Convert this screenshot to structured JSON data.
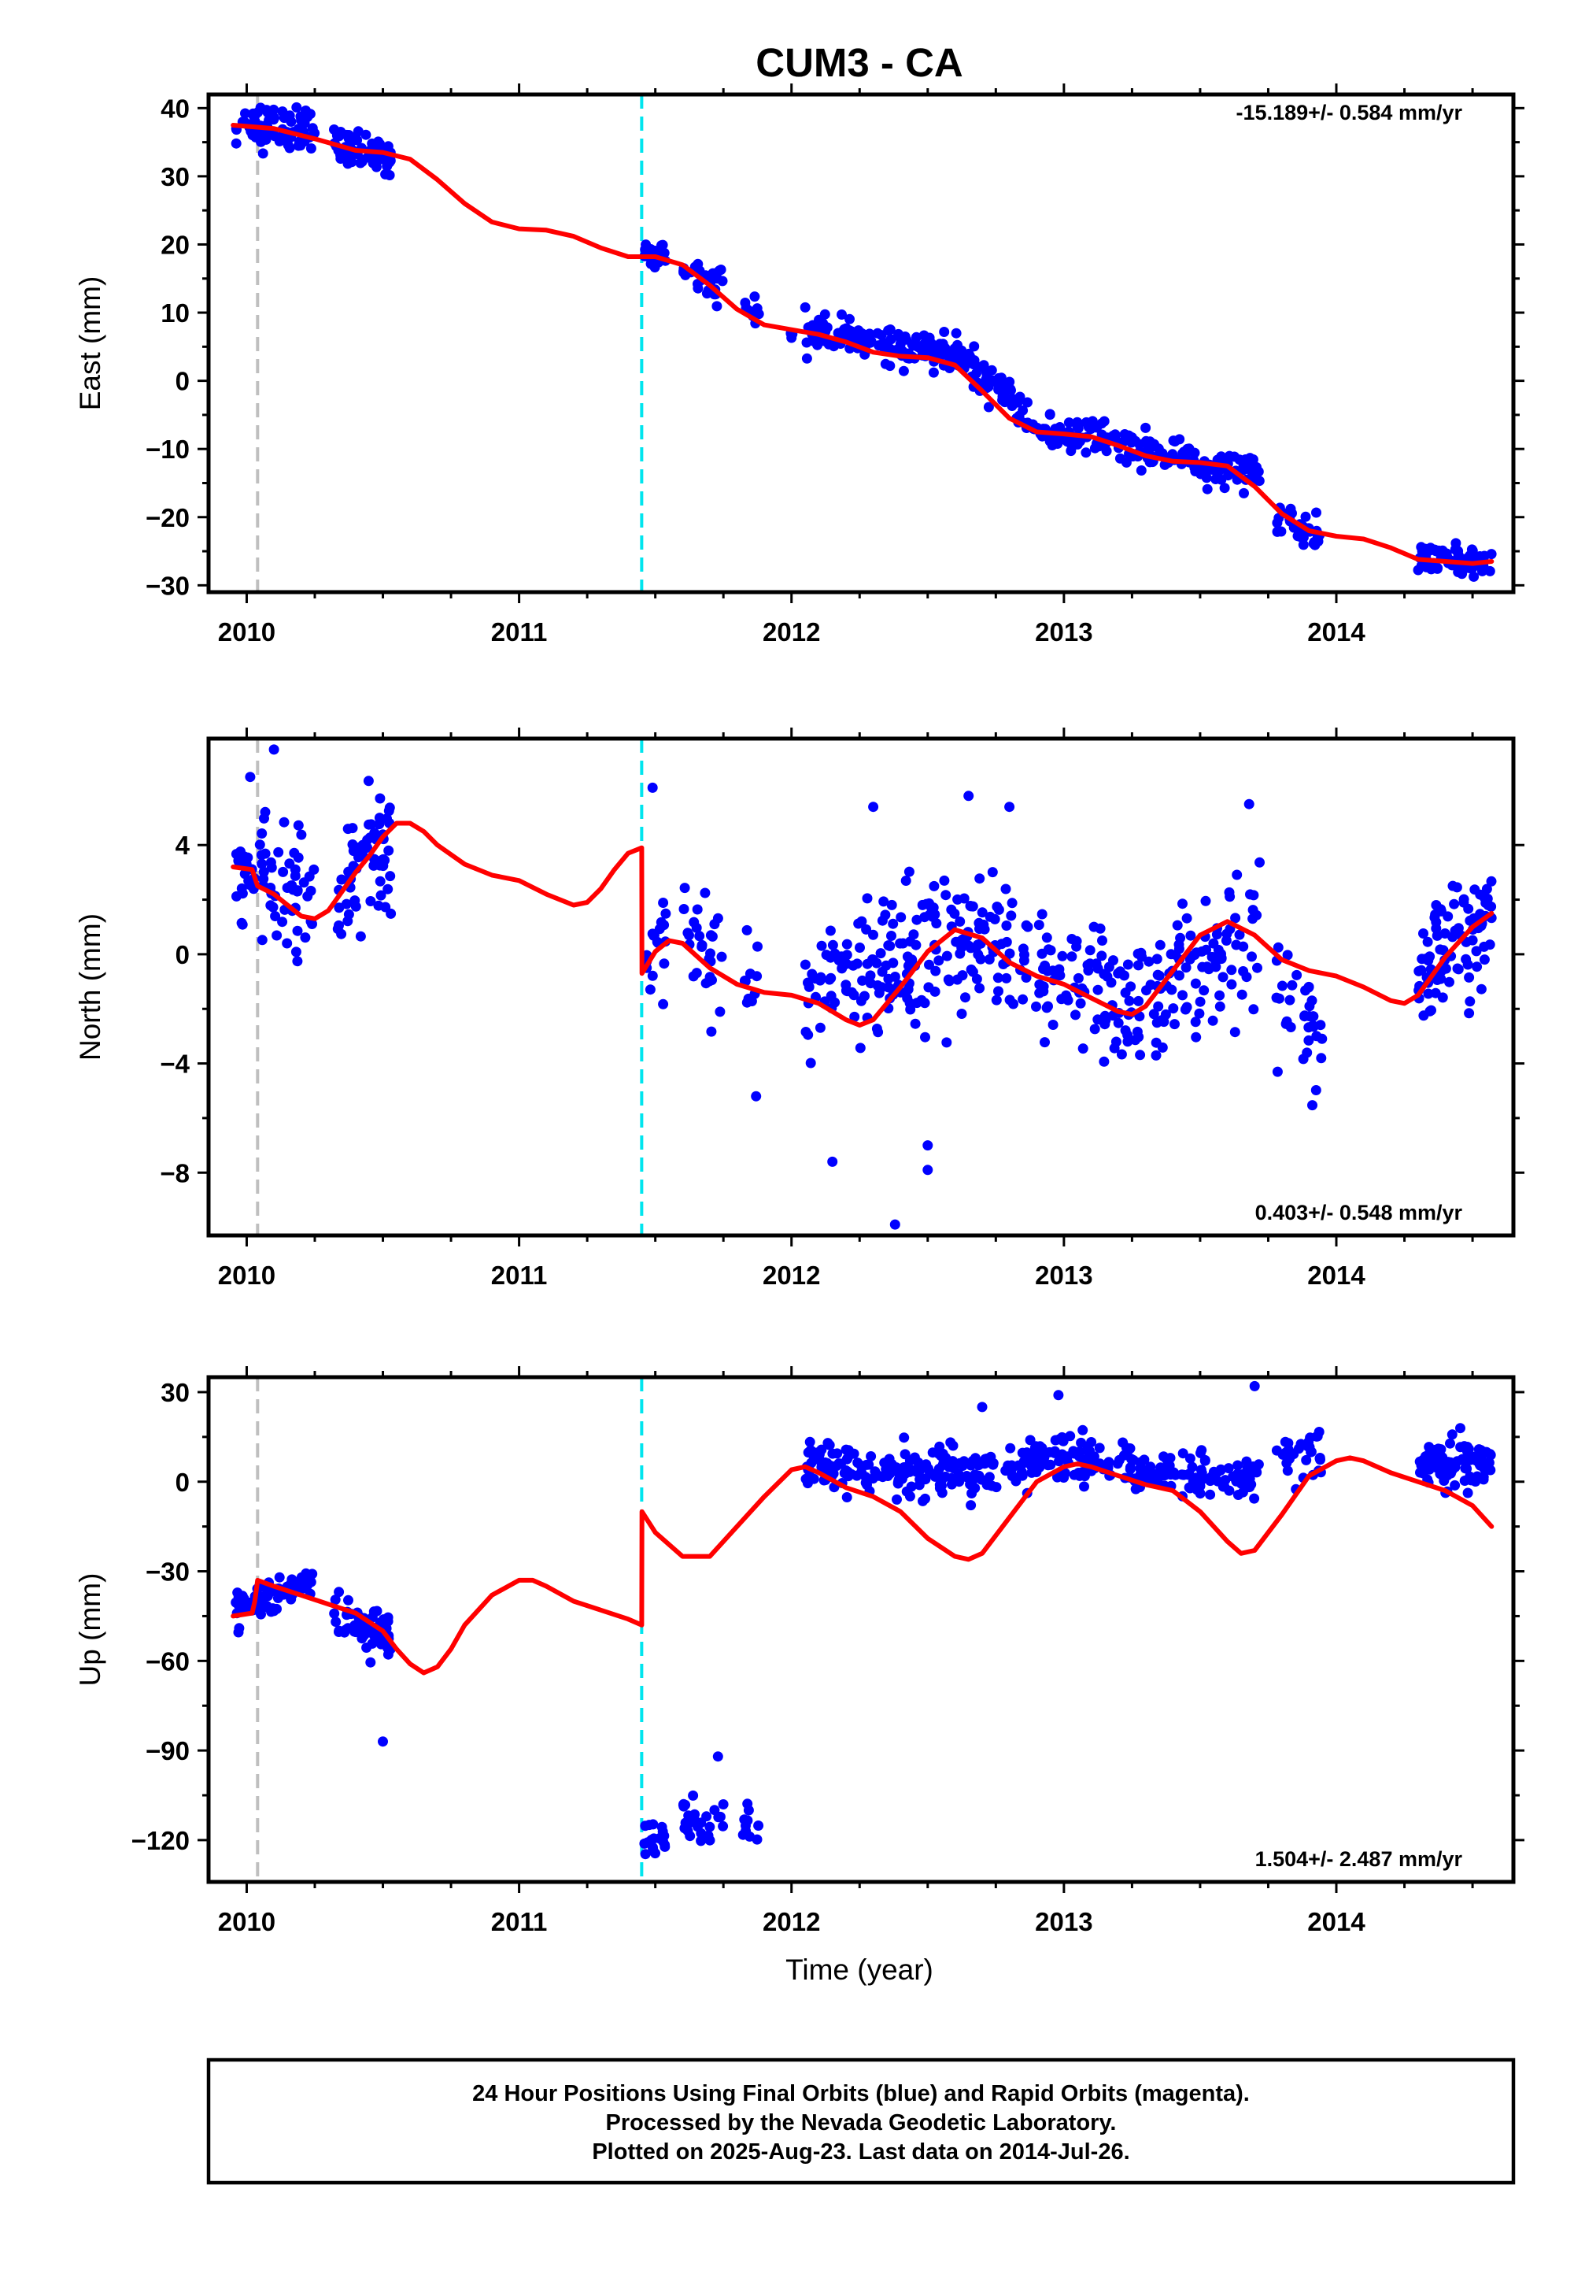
{
  "chart_data": {
    "type": "scatter",
    "title": "CUM3 - CA",
    "xlabel": "Time (year)",
    "x_ticks": [
      "2010",
      "2011",
      "2012",
      "2013",
      "2014"
    ],
    "xlim": [
      2009.86,
      2014.65
    ],
    "grid": false,
    "legend": "none",
    "colors": {
      "observations": "#0000ff",
      "model": "#ff0000",
      "antenna_change": "#00e5ee",
      "other_event": "#bfbfbf"
    },
    "events": [
      {
        "x": 2010.04,
        "color": "gray",
        "style": "dashed"
      },
      {
        "x": 2011.45,
        "color": "cyan",
        "style": "dashed"
      }
    ],
    "panels": [
      {
        "name": "East",
        "ylabel": "East (mm)",
        "ylim": [
          -31,
          42
        ],
        "y_ticks": [
          40,
          30,
          20,
          10,
          0,
          -10,
          -20,
          -30
        ],
        "y_tick_labels": [
          "40",
          "30",
          "20",
          "10",
          "0",
          "−10",
          "−20",
          "−30"
        ],
        "rate_text": "-15.189+/- 0.584 mm/yr",
        "rate_position": "top-right",
        "model_curve": {
          "x": [
            2009.95,
            2010.1,
            2010.25,
            2010.4,
            2010.5,
            2010.6,
            2010.7,
            2010.8,
            2010.9,
            2011.0,
            2011.1,
            2011.2,
            2011.3,
            2011.4,
            2011.5,
            2011.6,
            2011.7,
            2011.8,
            2011.9,
            2012.0,
            2012.1,
            2012.2,
            2012.3,
            2012.4,
            2012.5,
            2012.6,
            2012.7,
            2012.8,
            2012.9,
            2013.0,
            2013.1,
            2013.2,
            2013.3,
            2013.4,
            2013.5,
            2013.6,
            2013.7,
            2013.8,
            2013.9,
            2014.0,
            2014.1,
            2014.2,
            2014.3,
            2014.4,
            2014.5,
            2014.57
          ],
          "y": [
            37.5,
            37,
            35.5,
            33.8,
            33.5,
            32.5,
            29.5,
            26,
            23.3,
            22.3,
            22.1,
            21.2,
            19.5,
            18.2,
            18.2,
            17,
            14,
            10.5,
            8.2,
            7.5,
            6.8,
            5.7,
            4.2,
            3.6,
            3.4,
            2.3,
            -1.5,
            -5.5,
            -7.5,
            -7.8,
            -8.2,
            -9.5,
            -11,
            -11.8,
            -12,
            -12.5,
            -15.5,
            -19.5,
            -22,
            -22.8,
            -23.2,
            -24.5,
            -26.2,
            -26.5,
            -26.8,
            -26.5
          ]
        },
        "observations": [
          {
            "x0": 2009.96,
            "x1": 2010.25,
            "center": [
              37.5,
              37
            ],
            "spread": 2.2,
            "n": 72
          },
          {
            "x0": 2010.32,
            "x1": 2010.53,
            "center": [
              34,
              33.2
            ],
            "spread": 1.8,
            "n": 62
          },
          {
            "x0": 2011.46,
            "x1": 2011.54,
            "center": [
              18.5,
              18.5
            ],
            "spread": 1.3,
            "n": 18
          },
          {
            "x0": 2011.6,
            "x1": 2011.75,
            "center": [
              17,
              13.5
            ],
            "spread": 1.8,
            "n": 28
          },
          {
            "x0": 2011.82,
            "x1": 2011.88,
            "center": [
              11,
              10
            ],
            "spread": 1.3,
            "n": 10
          },
          {
            "x0": 2011.99,
            "x1": 2012.02,
            "center": [
              7,
              7
            ],
            "spread": 1,
            "n": 3
          },
          {
            "x0": 2012.05,
            "x1": 2012.65,
            "center": [
              7.5,
              3.2
            ],
            "spread": 1.6,
            "n": 150
          },
          {
            "x0": 2012.65,
            "x1": 2012.88,
            "center": [
              2.5,
              -6
            ],
            "spread": 2,
            "n": 55
          },
          {
            "x0": 2012.88,
            "x1": 2013.25,
            "center": [
              -7.5,
              -9
            ],
            "spread": 1.6,
            "n": 85
          },
          {
            "x0": 2013.25,
            "x1": 2013.72,
            "center": [
              -10.5,
              -13.5
            ],
            "spread": 1.7,
            "n": 105
          },
          {
            "x0": 2013.78,
            "x1": 2013.95,
            "center": [
              -20,
              -23
            ],
            "spread": 1.8,
            "n": 35
          },
          {
            "x0": 2014.3,
            "x1": 2014.57,
            "center": [
              -26,
              -26.5
            ],
            "spread": 1.3,
            "n": 85
          }
        ]
      },
      {
        "name": "North",
        "ylabel": "North (mm)",
        "ylim": [
          -10.3,
          7.9
        ],
        "y_ticks": [
          4,
          0,
          -4,
          -8
        ],
        "y_tick_labels": [
          "4",
          "0",
          "−4",
          "−8"
        ],
        "rate_text": "0.403+/- 0.548 mm/yr",
        "rate_position": "bottom-right",
        "model_curve": {
          "x": [
            2009.95,
            2010.02,
            2010.04,
            2010.1,
            2010.15,
            2010.2,
            2010.25,
            2010.3,
            2010.35,
            2010.4,
            2010.45,
            2010.5,
            2010.55,
            2010.6,
            2010.65,
            2010.7,
            2010.8,
            2010.9,
            2011.0,
            2011.1,
            2011.2,
            2011.25,
            2011.3,
            2011.35,
            2011.4,
            2011.45,
            2011.451,
            2011.5,
            2011.55,
            2011.6,
            2011.7,
            2011.8,
            2011.9,
            2012.0,
            2012.1,
            2012.2,
            2012.25,
            2012.3,
            2012.4,
            2012.5,
            2012.6,
            2012.7,
            2012.8,
            2012.9,
            2013.0,
            2013.1,
            2013.2,
            2013.25,
            2013.3,
            2013.4,
            2013.5,
            2013.6,
            2013.7,
            2013.8,
            2013.9,
            2014.0,
            2014.1,
            2014.2,
            2014.25,
            2014.3,
            2014.4,
            2014.5,
            2014.57
          ],
          "y": [
            3.2,
            3.1,
            2.5,
            2.2,
            1.8,
            1.4,
            1.3,
            1.6,
            2.3,
            3.0,
            3.6,
            4.3,
            4.8,
            4.8,
            4.5,
            4.0,
            3.3,
            2.9,
            2.7,
            2.2,
            1.8,
            1.9,
            2.4,
            3.1,
            3.7,
            3.9,
            -0.7,
            0.1,
            0.5,
            0.4,
            -0.5,
            -1.1,
            -1.4,
            -1.5,
            -1.8,
            -2.4,
            -2.6,
            -2.4,
            -1.2,
            0.1,
            0.9,
            0.6,
            -0.3,
            -0.8,
            -1.1,
            -1.6,
            -2.1,
            -2.2,
            -1.9,
            -0.6,
            0.7,
            1.2,
            0.7,
            -0.2,
            -0.6,
            -0.8,
            -1.2,
            -1.7,
            -1.8,
            -1.5,
            -0.1,
            1.0,
            1.5
          ]
        },
        "observations": [
          {
            "x0": 2009.96,
            "x1": 2010.25,
            "center": [
              3.2,
              1.8
            ],
            "spread": 1.5,
            "n": 75
          },
          {
            "x0": 2010.32,
            "x1": 2010.53,
            "center": [
              2.2,
              4.0
            ],
            "spread": 1.6,
            "n": 62
          },
          {
            "x0": 2011.46,
            "x1": 2011.54,
            "center": [
              0.5,
              0.5
            ],
            "spread": 1.8,
            "n": 18
          },
          {
            "x0": 2011.6,
            "x1": 2011.75,
            "center": [
              0.8,
              0.2
            ],
            "spread": 1.5,
            "n": 28
          },
          {
            "x0": 2011.82,
            "x1": 2011.88,
            "center": [
              -1.2,
              -1.3
            ],
            "spread": 1.5,
            "n": 10
          },
          {
            "x0": 2012.05,
            "x1": 2012.65,
            "center": [
              -1.6,
              0.6
            ],
            "spread": 1.8,
            "n": 150
          },
          {
            "x0": 2012.65,
            "x1": 2012.88,
            "center": [
              0.8,
              -0.4
            ],
            "spread": 1.6,
            "n": 55
          },
          {
            "x0": 2012.88,
            "x1": 2013.25,
            "center": [
              -0.8,
              -2.0
            ],
            "spread": 1.5,
            "n": 85
          },
          {
            "x0": 2013.25,
            "x1": 2013.72,
            "center": [
              -1.8,
              0.8
            ],
            "spread": 1.6,
            "n": 105
          },
          {
            "x0": 2013.78,
            "x1": 2013.95,
            "center": [
              -1.5,
              -3.0
            ],
            "spread": 1.6,
            "n": 35
          },
          {
            "x0": 2014.3,
            "x1": 2014.57,
            "center": [
              -0.8,
              1.2
            ],
            "spread": 1.4,
            "n": 85
          }
        ],
        "outliers": [
          {
            "x": 2010.1,
            "y": 7.5
          },
          {
            "x": 2011.49,
            "y": 6.1
          },
          {
            "x": 2012.3,
            "y": 5.4
          },
          {
            "x": 2012.65,
            "y": 5.8
          },
          {
            "x": 2012.8,
            "y": 5.4
          },
          {
            "x": 2013.68,
            "y": 5.5
          },
          {
            "x": 2012.15,
            "y": -7.6
          },
          {
            "x": 2012.5,
            "y": -7.0
          },
          {
            "x": 2012.5,
            "y": -7.9
          },
          {
            "x": 2012.38,
            "y": -9.9
          },
          {
            "x": 2011.87,
            "y": -5.2
          }
        ]
      },
      {
        "name": "Up",
        "ylabel": "Up (mm)",
        "ylim": [
          -134,
          35
        ],
        "y_ticks": [
          30,
          0,
          -30,
          -60,
          -90,
          -120
        ],
        "y_tick_labels": [
          "30",
          "0",
          "−30",
          "−60",
          "−90",
          "−120"
        ],
        "rate_text": "1.504+/- 2.487 mm/yr",
        "rate_position": "bottom-right",
        "model_curve": {
          "x": [
            2009.95,
            2010.02,
            2010.03,
            2010.04,
            2010.1,
            2010.2,
            2010.3,
            2010.4,
            2010.5,
            2010.55,
            2010.6,
            2010.65,
            2010.7,
            2010.75,
            2010.8,
            2010.9,
            2011.0,
            2011.05,
            2011.1,
            2011.2,
            2011.3,
            2011.4,
            2011.45,
            2011.451,
            2011.5,
            2011.6,
            2011.7,
            2011.8,
            2011.9,
            2012.0,
            2012.05,
            2012.1,
            2012.2,
            2012.3,
            2012.4,
            2012.5,
            2012.6,
            2012.65,
            2012.7,
            2012.8,
            2012.9,
            2013.0,
            2013.05,
            2013.1,
            2013.2,
            2013.3,
            2013.4,
            2013.5,
            2013.6,
            2013.65,
            2013.7,
            2013.8,
            2013.9,
            2014.0,
            2014.05,
            2014.1,
            2014.2,
            2014.3,
            2014.4,
            2014.5,
            2014.57
          ],
          "y": [
            -45,
            -44,
            -40,
            -33,
            -35,
            -38,
            -41,
            -44,
            -50,
            -56,
            -61,
            -64,
            -62,
            -56,
            -48,
            -38,
            -33,
            -33,
            -35,
            -40,
            -43,
            -46,
            -48,
            -10,
            -17,
            -25,
            -25,
            -15,
            -5,
            4,
            5,
            3,
            -2,
            -5,
            -10,
            -19,
            -25,
            -26,
            -24,
            -12,
            0,
            5,
            6,
            5,
            2,
            -1,
            -3,
            -10,
            -20,
            -24,
            -23,
            -11,
            2,
            7,
            8,
            7,
            3,
            0,
            -3,
            -8,
            -15
          ]
        },
        "observations": [
          {
            "x0": 2009.96,
            "x1": 2010.25,
            "center": [
              -42,
              -33
            ],
            "spread": 3.5,
            "n": 72
          },
          {
            "x0": 2010.32,
            "x1": 2010.53,
            "center": [
              -45,
              -52
            ],
            "spread": 5,
            "n": 62
          },
          {
            "x0": 2011.46,
            "x1": 2011.54,
            "center": [
              -120,
              -122
            ],
            "spread": 5,
            "n": 18
          },
          {
            "x0": 2011.6,
            "x1": 2011.75,
            "center": [
              -113,
              -117
            ],
            "spread": 6,
            "n": 28
          },
          {
            "x0": 2011.82,
            "x1": 2011.88,
            "center": [
              -112,
              -115
            ],
            "spread": 5,
            "n": 10
          },
          {
            "x0": 2012.05,
            "x1": 2012.65,
            "center": [
              6,
              2
            ],
            "spread": 5.5,
            "n": 150
          },
          {
            "x0": 2012.65,
            "x1": 2012.88,
            "center": [
              2,
              6
            ],
            "spread": 5.5,
            "n": 55
          },
          {
            "x0": 2012.88,
            "x1": 2013.25,
            "center": [
              8,
              6
            ],
            "spread": 5.5,
            "n": 85
          },
          {
            "x0": 2013.25,
            "x1": 2013.72,
            "center": [
              2,
              1
            ],
            "spread": 5,
            "n": 105
          },
          {
            "x0": 2013.78,
            "x1": 2013.95,
            "center": [
              10,
              7
            ],
            "spread": 5,
            "n": 35
          },
          {
            "x0": 2014.3,
            "x1": 2014.57,
            "center": [
              5,
              5
            ],
            "spread": 5.5,
            "n": 85
          }
        ],
        "outliers": [
          {
            "x": 2010.5,
            "y": -87
          },
          {
            "x": 2011.73,
            "y": -92
          },
          {
            "x": 2012.98,
            "y": 29
          },
          {
            "x": 2013.7,
            "y": 32
          },
          {
            "x": 2012.7,
            "y": 25
          }
        ]
      }
    ]
  },
  "footer": {
    "line1": "24 Hour Positions Using Final Orbits (blue) and Rapid Orbits (magenta).",
    "line2": "Processed by the Nevada Geodetic Laboratory.",
    "line3": "Plotted on 2025-Aug-23. Last data on 2014-Jul-26."
  }
}
